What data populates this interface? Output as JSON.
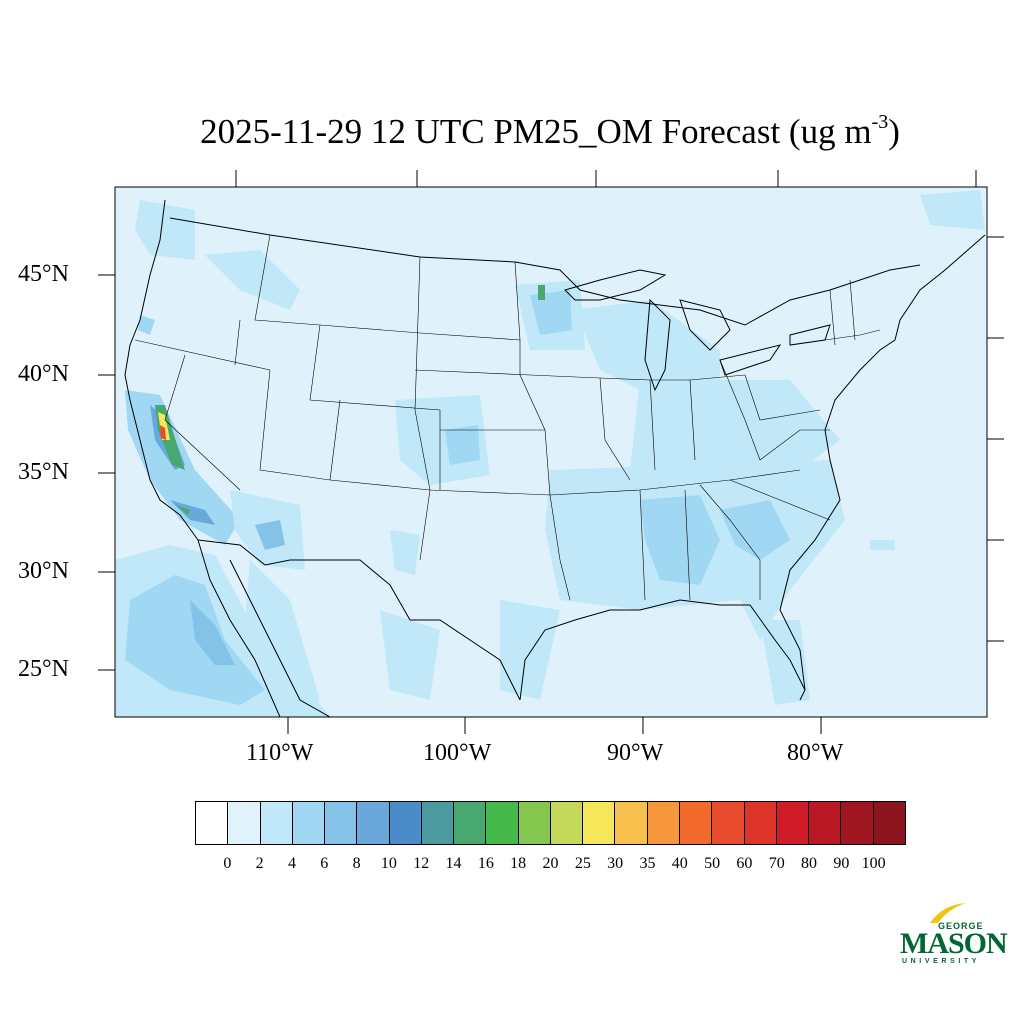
{
  "title": {
    "main": "2025-11-29 12 UTC PM25_OM Forecast (ug m",
    "sup": "-3",
    "close": ")"
  },
  "lat_labels": [
    "45°N",
    "40°N",
    "35°N",
    "30°N",
    "25°N"
  ],
  "lon_labels": [
    "110°W",
    "100°W",
    "90°W",
    "80°W"
  ],
  "colorbar": {
    "labels": [
      "0",
      "2",
      "4",
      "6",
      "8",
      "10",
      "12",
      "14",
      "16",
      "18",
      "20",
      "25",
      "30",
      "35",
      "40",
      "50",
      "60",
      "70",
      "80",
      "90",
      "100"
    ],
    "colors": [
      "#ffffff",
      "#e0f3fb",
      "#c0e8f8",
      "#a0d8f4",
      "#85c2e8",
      "#6aa8dc",
      "#4a8cca",
      "#4a9aa0",
      "#48a870",
      "#44b848",
      "#85c64e",
      "#c4d85a",
      "#f5e65a",
      "#f7bf4c",
      "#f7973c",
      "#f26a2c",
      "#e84c2c",
      "#dc3428",
      "#d01c28",
      "#ba1824",
      "#a01620",
      "#8c141c"
    ]
  },
  "logo": {
    "line1": "GEORGE",
    "line2": "MASON",
    "line3": "UNIVERSITY"
  },
  "map": {
    "background_color": "#dff2fb",
    "level_colors": [
      "#c0e8f8",
      "#a0d8f4",
      "#85c2e8",
      "#6aa8dc",
      "#48a870",
      "#f5e65a",
      "#e84c2c"
    ]
  }
}
